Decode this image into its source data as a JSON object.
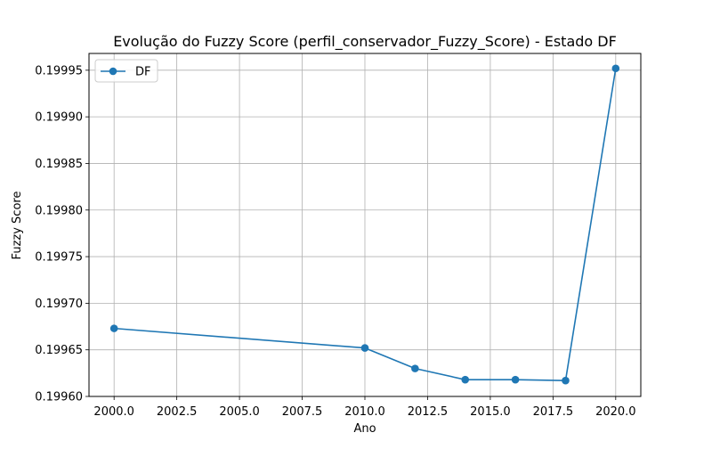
{
  "chart_data": {
    "type": "line",
    "title": "Evolução do Fuzzy Score (perfil_conservador_Fuzzy_Score) - Estado DF",
    "xlabel": "Ano",
    "ylabel": "Fuzzy Score",
    "xlim": [
      1999.0,
      2021.0
    ],
    "ylim": [
      0.1996,
      0.199968
    ],
    "x_ticks": [
      2000.0,
      2002.5,
      2005.0,
      2007.5,
      2010.0,
      2012.5,
      2015.0,
      2017.5,
      2020.0
    ],
    "x_tick_labels": [
      "2000.0",
      "2002.5",
      "2005.0",
      "2007.5",
      "2010.0",
      "2012.5",
      "2015.0",
      "2017.5",
      "2020.0"
    ],
    "y_ticks": [
      0.1996,
      0.19965,
      0.1997,
      0.19975,
      0.1998,
      0.19985,
      0.1999,
      0.19995
    ],
    "y_tick_labels": [
      "0.19960",
      "0.19965",
      "0.19970",
      "0.19975",
      "0.19980",
      "0.19985",
      "0.19990",
      "0.19995"
    ],
    "grid": true,
    "legend_position": "top-left",
    "series": [
      {
        "name": "DF",
        "color": "#1f77b4",
        "marker": "circle",
        "x": [
          2000,
          2010,
          2012,
          2014,
          2016,
          2018,
          2020
        ],
        "y": [
          0.199673,
          0.199652,
          0.19963,
          0.199618,
          0.199618,
          0.199617,
          0.199952
        ]
      }
    ]
  }
}
